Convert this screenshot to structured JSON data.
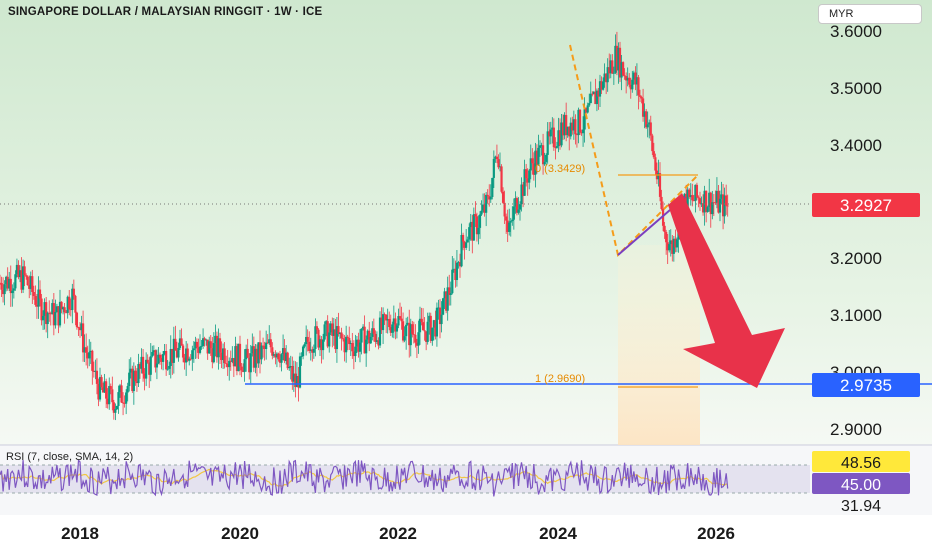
{
  "header": {
    "title": "SINGAPORE DOLLAR / MALAYSIAN RINGGIT · 1W · ICE",
    "currency": "MYR"
  },
  "price_axis": {
    "ticks": [
      "3.6000",
      "3.5000",
      "3.4000",
      "3.2000",
      "3.1000",
      "3.0000",
      "2.9000"
    ],
    "current_price": "3.2927",
    "support_price": "2.9735"
  },
  "time_axis": {
    "ticks": [
      "2018",
      "2020",
      "2022",
      "2024",
      "2026"
    ]
  },
  "fib": {
    "level0": "0 (3.3429)",
    "level1": "1 (2.9690)"
  },
  "rsi": {
    "label": "RSI (7, close, SMA, 14, 2)",
    "value_high": "48.56",
    "value_rsi": "45.00",
    "value_low": "31.94"
  },
  "colors": {
    "up": "#089981",
    "down": "#f23645",
    "support_line": "#2962ff",
    "fib": "#f59c1a",
    "arrow": "#e8324a",
    "rsi_line": "#7e57c2",
    "rsi_sma": "#f2c744"
  },
  "chart_data": {
    "type": "candlestick",
    "instrument": "SINGAPORE DOLLAR / MALAYSIAN RINGGIT",
    "interval": "1W",
    "x_range": [
      2016.5,
      2027.5
    ],
    "y_range": [
      2.85,
      3.62
    ],
    "price_path": [
      [
        2016.5,
        3.16
      ],
      [
        2016.8,
        3.17
      ],
      [
        2017.0,
        3.12
      ],
      [
        2017.2,
        3.1
      ],
      [
        2017.4,
        3.14
      ],
      [
        2017.55,
        3.05
      ],
      [
        2017.75,
        2.97
      ],
      [
        2017.95,
        2.95
      ],
      [
        2018.2,
        3.0
      ],
      [
        2018.5,
        3.03
      ],
      [
        2018.75,
        3.04
      ],
      [
        2019.0,
        3.05
      ],
      [
        2019.3,
        3.04
      ],
      [
        2019.6,
        3.02
      ],
      [
        2019.9,
        3.05
      ],
      [
        2020.0,
        3.04
      ],
      [
        2020.2,
        2.98
      ],
      [
        2020.35,
        3.06
      ],
      [
        2020.6,
        3.07
      ],
      [
        2020.9,
        3.05
      ],
      [
        2021.2,
        3.07
      ],
      [
        2021.45,
        3.1
      ],
      [
        2021.6,
        3.07
      ],
      [
        2021.9,
        3.08
      ],
      [
        2022.0,
        3.1
      ],
      [
        2022.15,
        3.16
      ],
      [
        2022.3,
        3.24
      ],
      [
        2022.45,
        3.26
      ],
      [
        2022.6,
        3.3
      ],
      [
        2022.72,
        3.4
      ],
      [
        2022.85,
        3.24
      ],
      [
        2022.95,
        3.3
      ],
      [
        2023.15,
        3.37
      ],
      [
        2023.4,
        3.41
      ],
      [
        2023.6,
        3.44
      ],
      [
        2023.8,
        3.44
      ],
      [
        2023.95,
        3.49
      ],
      [
        2024.1,
        3.53
      ],
      [
        2024.2,
        3.56
      ],
      [
        2024.3,
        3.53
      ],
      [
        2024.45,
        3.51
      ],
      [
        2024.6,
        3.44
      ],
      [
        2024.72,
        3.34
      ],
      [
        2024.8,
        3.25
      ],
      [
        2024.9,
        3.22
      ],
      [
        2025.05,
        3.3
      ],
      [
        2025.25,
        3.31
      ],
      [
        2025.45,
        3.3
      ],
      [
        2025.6,
        3.2927
      ]
    ],
    "last_price": 3.2927,
    "horizontal_support": 2.9735,
    "fib_retracement": [
      {
        "level": 0,
        "price": 3.3429
      },
      {
        "level": 1,
        "price": 2.969
      }
    ],
    "rsi": {
      "length": 7,
      "source": "close",
      "smoothing": "SMA",
      "smoothing_length": 14,
      "levels": [
        48.56,
        45.0,
        31.94
      ]
    },
    "annotation": "downward arrow from ~3.29 to ~2.97 support"
  }
}
